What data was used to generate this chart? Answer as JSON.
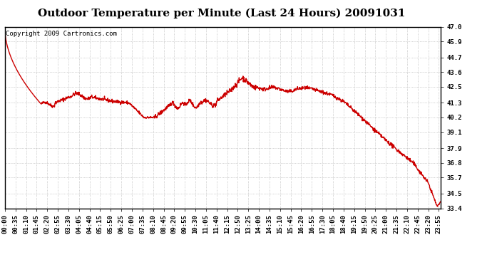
{
  "title": "Outdoor Temperature per Minute (Last 24 Hours) 20091031",
  "copyright_text": "Copyright 2009 Cartronics.com",
  "line_color": "#cc0000",
  "bg_color": "#ffffff",
  "plot_bg_color": "#ffffff",
  "grid_color": "#aaaaaa",
  "ylim": [
    33.4,
    47.0
  ],
  "yticks": [
    33.4,
    34.5,
    35.7,
    36.8,
    37.9,
    39.1,
    40.2,
    41.3,
    42.5,
    43.6,
    44.7,
    45.9,
    47.0
  ],
  "x_tick_labels": [
    "00:00",
    "00:35",
    "01:10",
    "01:45",
    "02:20",
    "02:55",
    "03:30",
    "04:05",
    "04:40",
    "05:15",
    "05:50",
    "06:25",
    "07:00",
    "07:35",
    "08:10",
    "08:45",
    "09:20",
    "09:55",
    "10:30",
    "11:05",
    "11:40",
    "12:15",
    "12:50",
    "13:25",
    "14:00",
    "14:35",
    "15:10",
    "15:45",
    "16:20",
    "16:55",
    "17:30",
    "18:05",
    "18:40",
    "19:15",
    "19:50",
    "20:25",
    "21:00",
    "21:35",
    "22:10",
    "22:45",
    "23:20",
    "23:55"
  ],
  "title_fontsize": 11,
  "tick_fontsize": 6.5,
  "copyright_fontsize": 6.5,
  "line_width": 1.0,
  "seed": 42
}
